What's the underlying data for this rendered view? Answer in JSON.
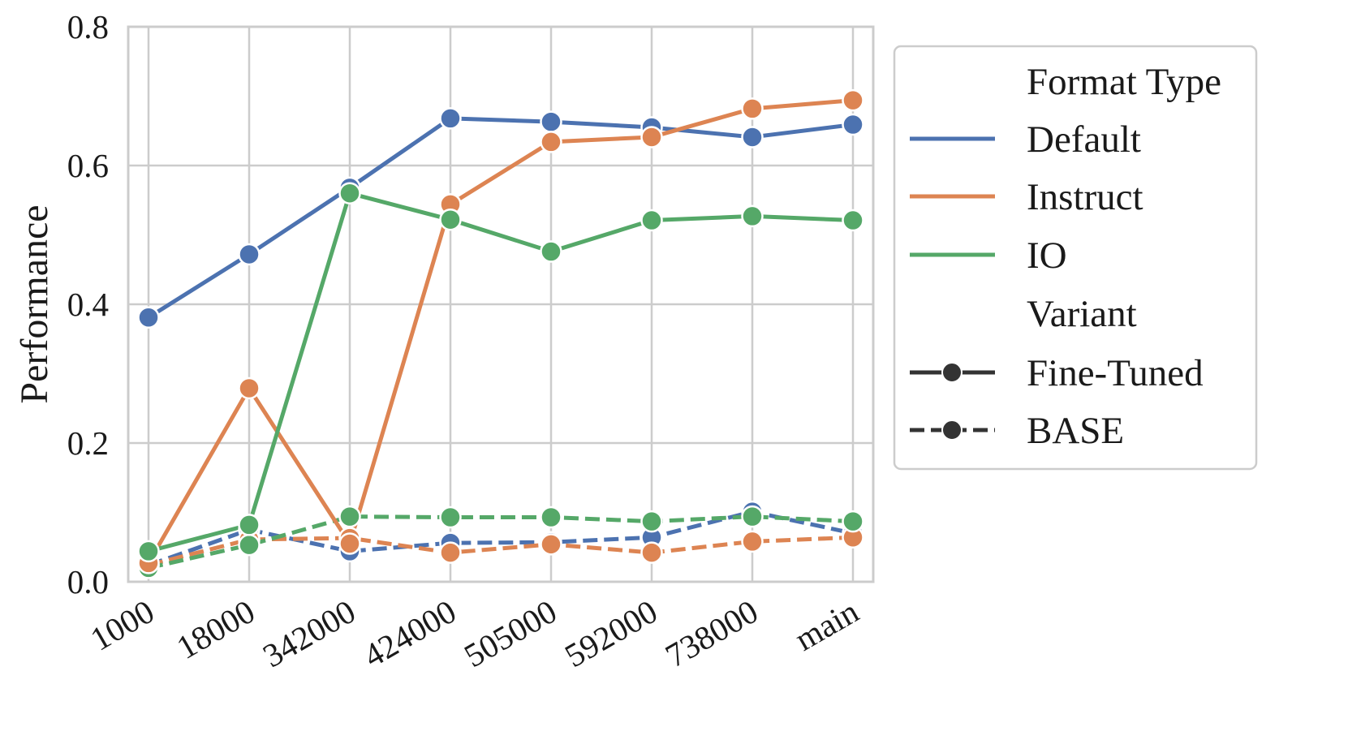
{
  "chart_data": {
    "type": "line",
    "title": "",
    "xlabel": "",
    "ylabel": "Performance",
    "categories": [
      "1000",
      "18000",
      "342000",
      "424000",
      "505000",
      "592000",
      "738000",
      "main"
    ],
    "ylim": [
      0.0,
      0.8
    ],
    "yticks": [
      "0.0",
      "0.2",
      "0.4",
      "0.6",
      "0.8"
    ],
    "grid": true,
    "legend_position": "outside-right",
    "legend": {
      "hue_title": "Format Type",
      "style_title": "Variant",
      "hue_entries": [
        "Default",
        "Instruct",
        "IO"
      ],
      "style_entries": [
        "Fine-Tuned",
        "BASE"
      ]
    },
    "colors": {
      "Default": "#4c72b0",
      "Instruct": "#dd8452",
      "IO": "#55a868",
      "legend_marker": "#333333",
      "grid": "#cccccc"
    },
    "series": [
      {
        "format": "Default",
        "variant": "Fine-Tuned",
        "values": [
          0.381,
          0.472,
          0.568,
          0.668,
          0.663,
          0.655,
          0.641,
          0.659
        ]
      },
      {
        "format": "Instruct",
        "variant": "Fine-Tuned",
        "values": [
          0.027,
          0.279,
          0.055,
          0.544,
          0.634,
          0.641,
          0.682,
          0.694
        ]
      },
      {
        "format": "IO",
        "variant": "Fine-Tuned",
        "values": [
          0.044,
          0.082,
          0.56,
          0.522,
          0.476,
          0.521,
          0.527,
          0.521
        ]
      },
      {
        "format": "Default",
        "variant": "BASE",
        "values": [
          0.024,
          0.075,
          0.044,
          0.056,
          0.057,
          0.064,
          0.101,
          0.07
        ]
      },
      {
        "format": "Instruct",
        "variant": "BASE",
        "values": [
          0.024,
          0.061,
          0.063,
          0.042,
          0.054,
          0.042,
          0.058,
          0.064
        ]
      },
      {
        "format": "IO",
        "variant": "BASE",
        "values": [
          0.02,
          0.053,
          0.094,
          0.093,
          0.093,
          0.087,
          0.094,
          0.087
        ]
      }
    ]
  }
}
